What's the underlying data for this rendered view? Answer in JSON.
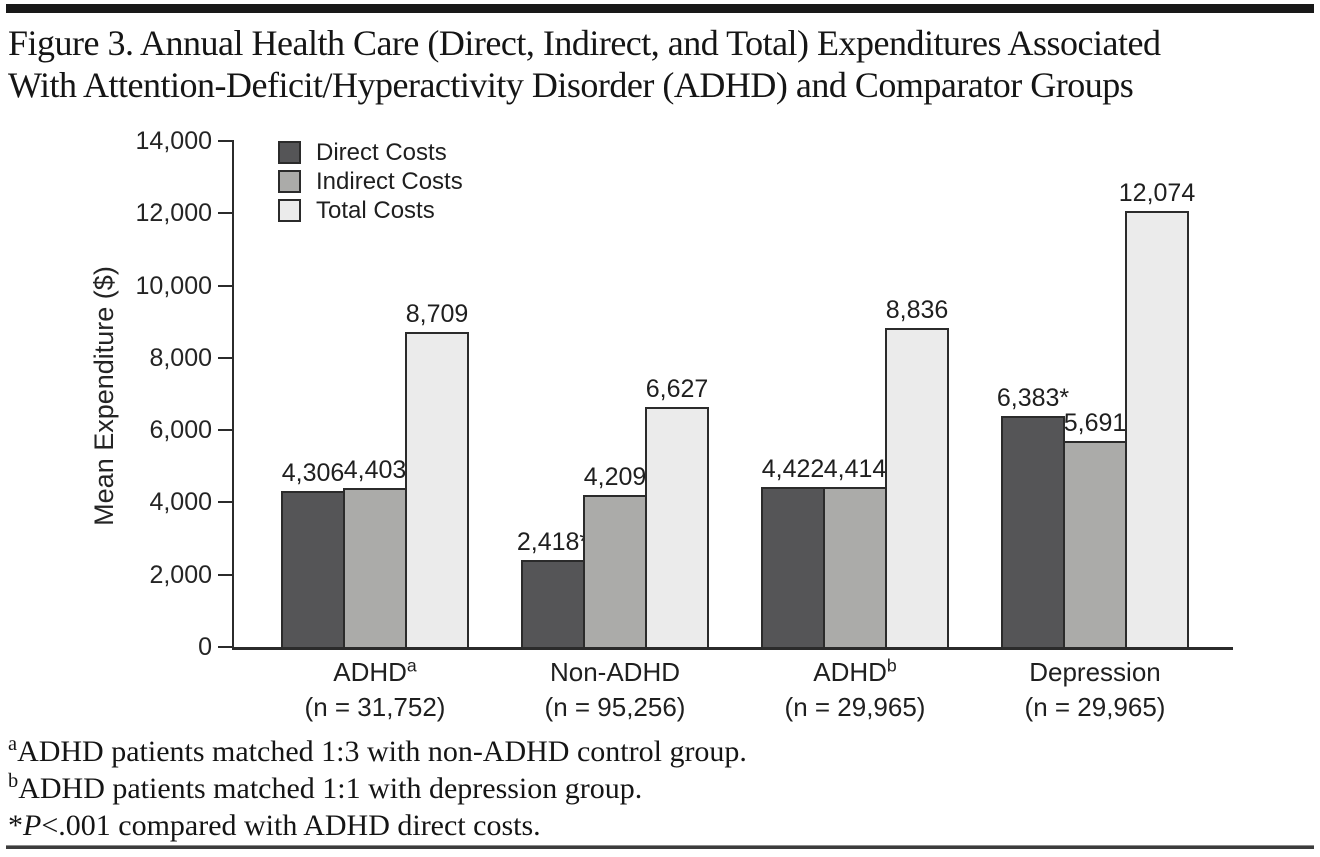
{
  "figure": {
    "title_lines": [
      "Figure 3. Annual Health Care (Direct, Indirect, and Total) Expenditures Associated",
      "With Attention-Deficit/Hyperactivity Disorder (ADHD) and Comparator Groups"
    ]
  },
  "colors": {
    "direct": "#555557",
    "indirect": "#ababa9",
    "total": "#ebebeb",
    "bar_border": "#2b2b2b",
    "axis": "#2b2b2b",
    "text": "#1f1f1f"
  },
  "chart_data": {
    "type": "bar",
    "title": "",
    "xlabel": "",
    "ylabel": "Mean Expenditure ($)",
    "ylim": [
      0,
      14000
    ],
    "ytick_step": 2000,
    "ytick_labels": [
      "0",
      "2,000",
      "4,000",
      "6,000",
      "8,000",
      "10,000",
      "12,000",
      "14,000"
    ],
    "grid": false,
    "legend_position": "upper-left-inside",
    "categories": [
      {
        "name": "ADHD",
        "sup": "a",
        "n_label": "(n = 31,752)"
      },
      {
        "name": "Non-ADHD",
        "sup": "",
        "n_label": "(n = 95,256)"
      },
      {
        "name": "ADHD",
        "sup": "b",
        "n_label": "(n = 29,965)"
      },
      {
        "name": "Depression",
        "sup": "",
        "n_label": "(n = 29,965)"
      }
    ],
    "series": [
      {
        "name": "Direct Costs",
        "color_key": "direct",
        "values": [
          4306,
          2418,
          4422,
          6383
        ],
        "labels": [
          "4,306",
          "2,418*",
          "4,422",
          "6,383*"
        ]
      },
      {
        "name": "Indirect Costs",
        "color_key": "indirect",
        "values": [
          4403,
          4209,
          4414,
          5691
        ],
        "labels": [
          "4,403",
          "4,209",
          "4,414",
          "5,691"
        ]
      },
      {
        "name": "Total Costs",
        "color_key": "total",
        "values": [
          8709,
          6627,
          8836,
          12074
        ],
        "labels": [
          "8,709",
          "6,627",
          "8,836",
          "12,074"
        ]
      }
    ]
  },
  "footnotes": [
    {
      "sup": "a",
      "pre": "",
      "em": "",
      "text": "ADHD patients matched 1:3 with non-ADHD control group."
    },
    {
      "sup": "b",
      "pre": "",
      "em": "",
      "text": "ADHD patients matched 1:1 with depression group."
    },
    {
      "sup": "",
      "pre": "*",
      "em": "P",
      "text": "<.001 compared with ADHD direct costs."
    }
  ]
}
